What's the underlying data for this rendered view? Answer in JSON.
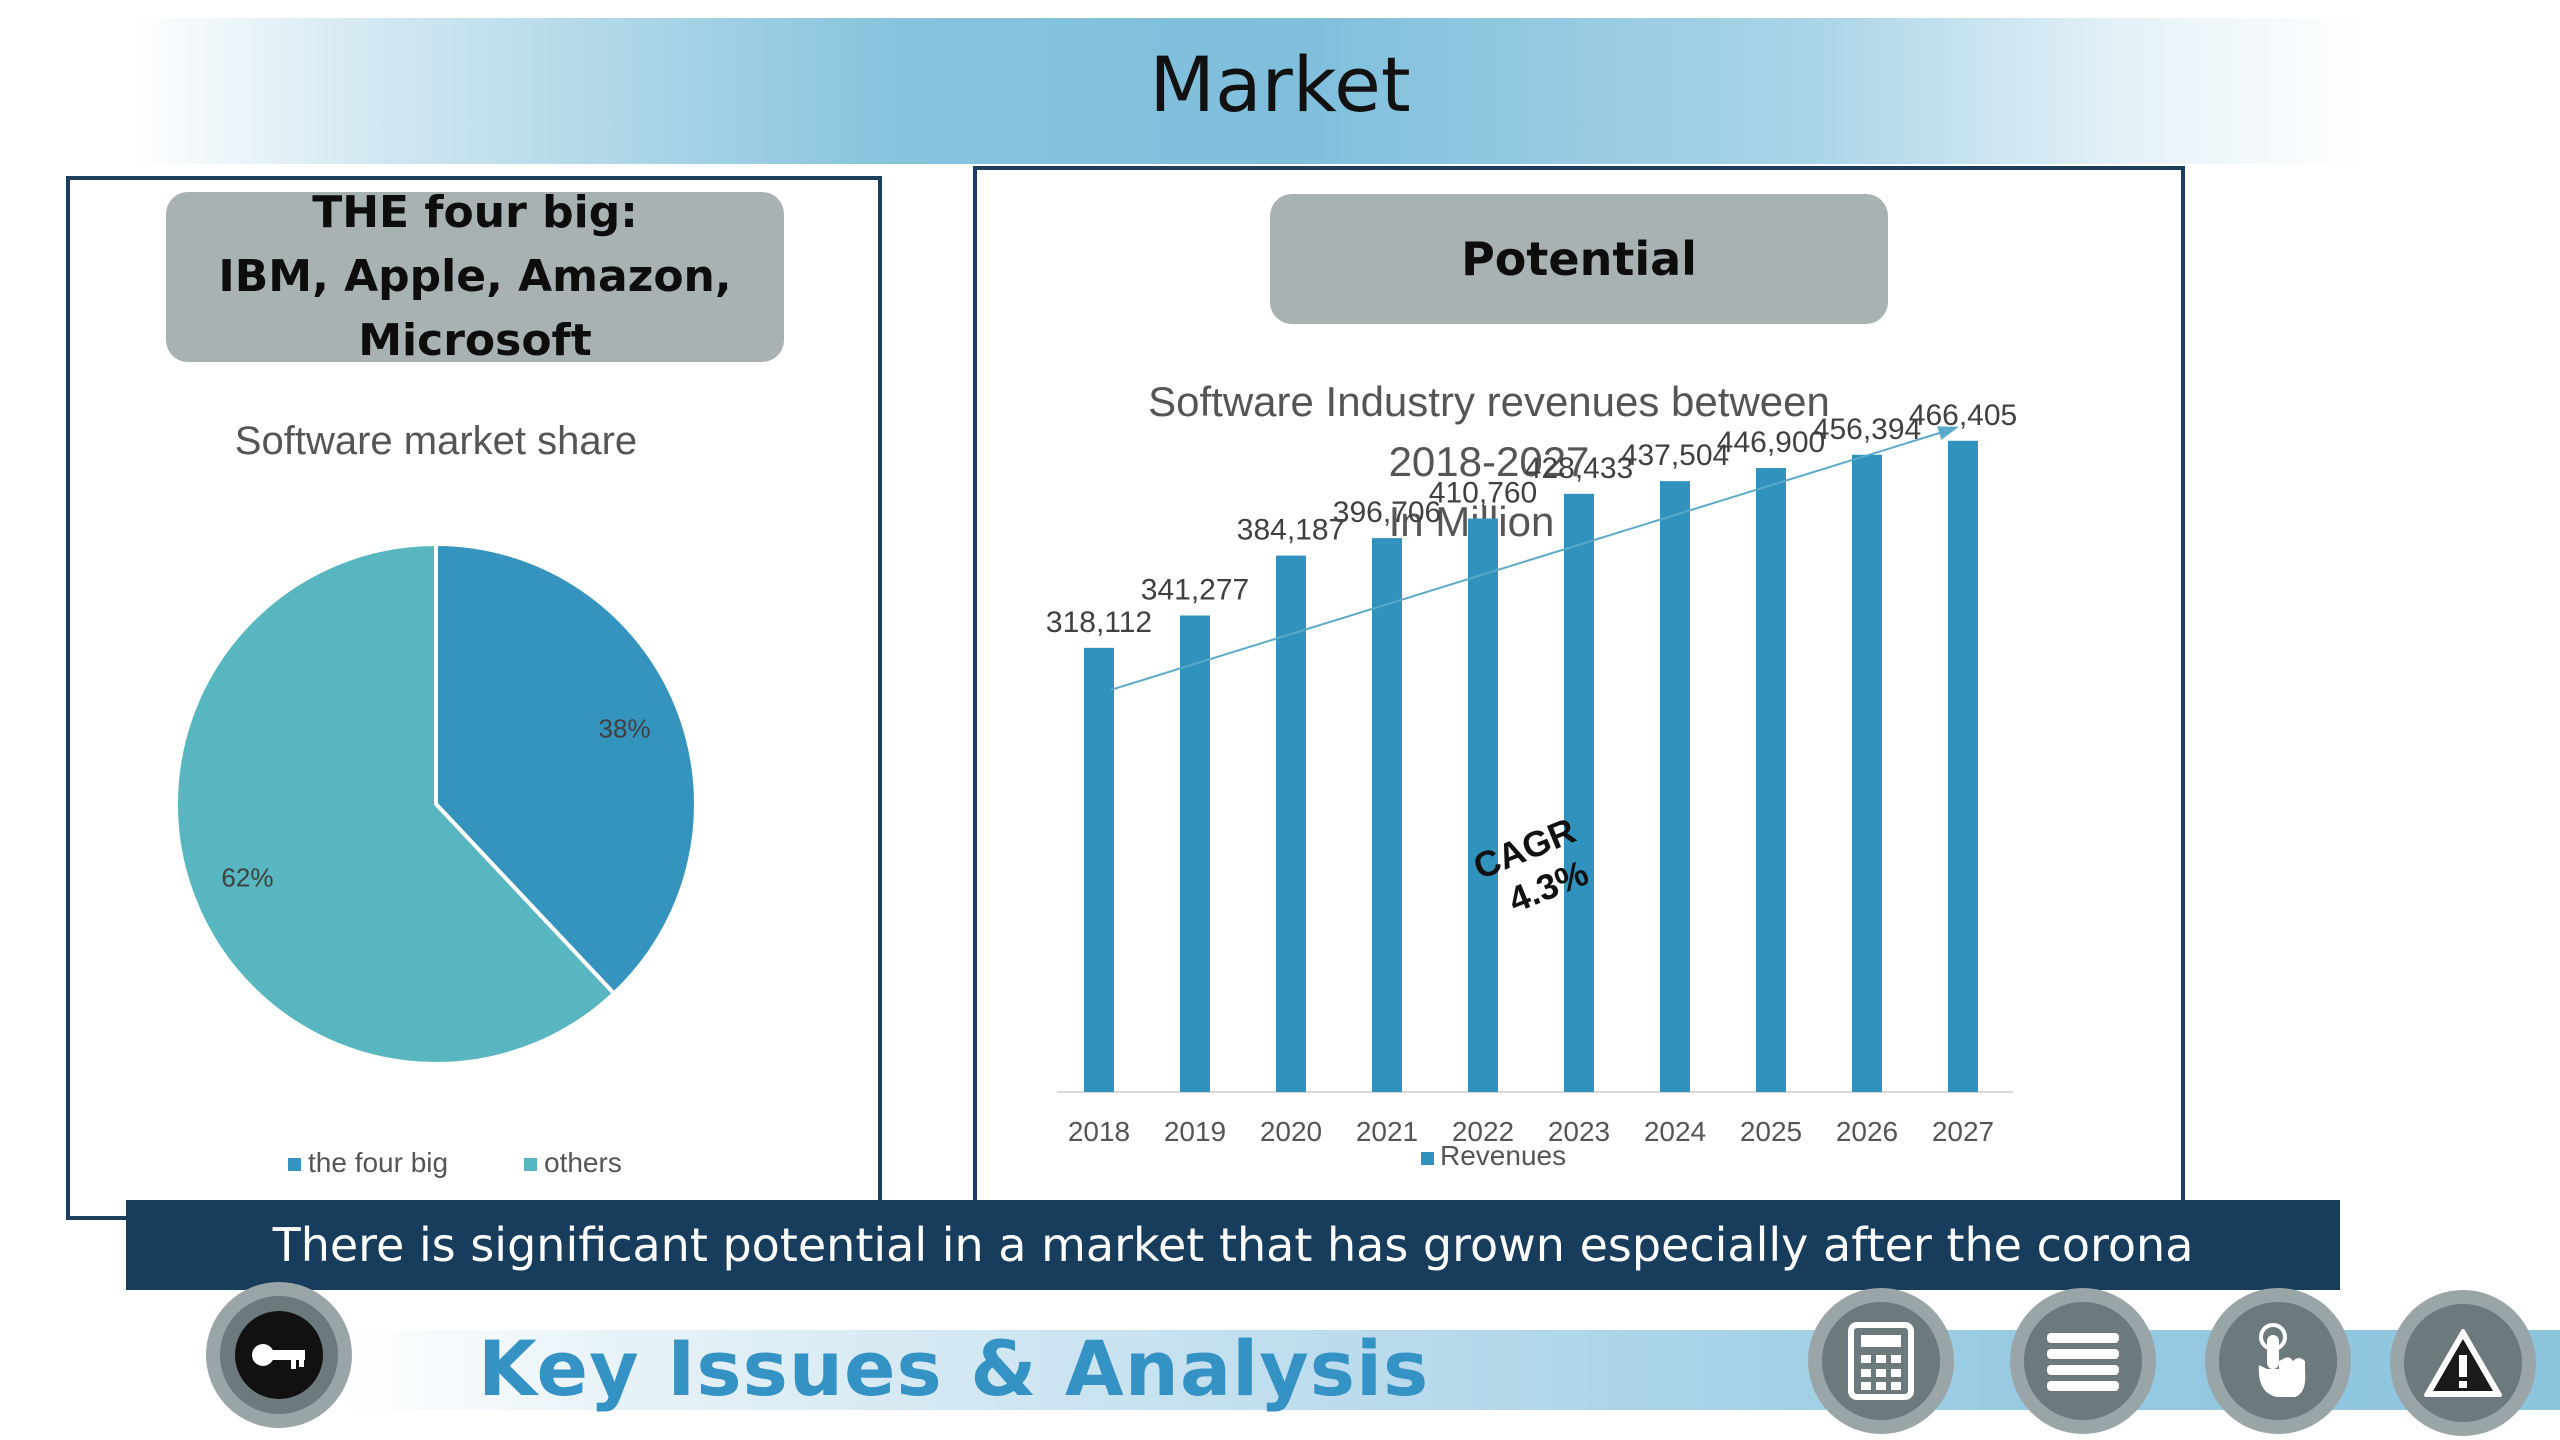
{
  "page": {
    "title": "Market"
  },
  "left_panel": {
    "pill_lines": [
      "THE four big:",
      "IBM, Apple, Amazon,",
      "Microsoft"
    ]
  },
  "right_panel": {
    "pill_label": "Potential"
  },
  "banner": {
    "text": "There is significant potential in a market that has grown especially after the corona"
  },
  "footer": {
    "title": "Key Issues & Analysis",
    "buttons": [
      "key-icon",
      "calculator-icon",
      "menu-icon",
      "touch-icon",
      "warning-icon"
    ]
  },
  "colors": {
    "header_gradient": "#7fbfdc",
    "panel_border": "#1c3f5e",
    "pill_bg": "#a9b2b3",
    "banner_bg": "#173c5c",
    "footer_title": "#3592c4",
    "bar": "#3193bd",
    "pie_four_big": "#3594bd",
    "pie_others": "#58b6c0"
  },
  "chart_data": [
    {
      "type": "pie",
      "title": "Software market share",
      "categories": [
        "the four big",
        "others"
      ],
      "values": [
        38,
        62
      ],
      "labels": [
        "38%",
        "62%"
      ],
      "legend": "bottom"
    },
    {
      "type": "bar",
      "title": "Software Industry revenues between 2018-2027",
      "title_lines": [
        "Software Industry revenues between",
        "2018-2027",
        "In Million $"
      ],
      "categories": [
        "2018",
        "2019",
        "2020",
        "2021",
        "2022",
        "2023",
        "2024",
        "2025",
        "2026",
        "2027"
      ],
      "series": [
        {
          "name": "Revenues",
          "values": [
            318112,
            341277,
            384187,
            396706,
            410760,
            428433,
            437504,
            446900,
            456394,
            466405
          ]
        }
      ],
      "value_labels": [
        "318,112",
        "341,277",
        "384,187",
        "396,706",
        "410,760",
        "428,433",
        "437,504",
        "446,900",
        "456,394",
        "466,405"
      ],
      "ylim": [
        0,
        530000
      ],
      "grid": false,
      "legend": "bottom",
      "annotation": {
        "line1": "CAGR",
        "line2": "4.3%"
      }
    }
  ]
}
